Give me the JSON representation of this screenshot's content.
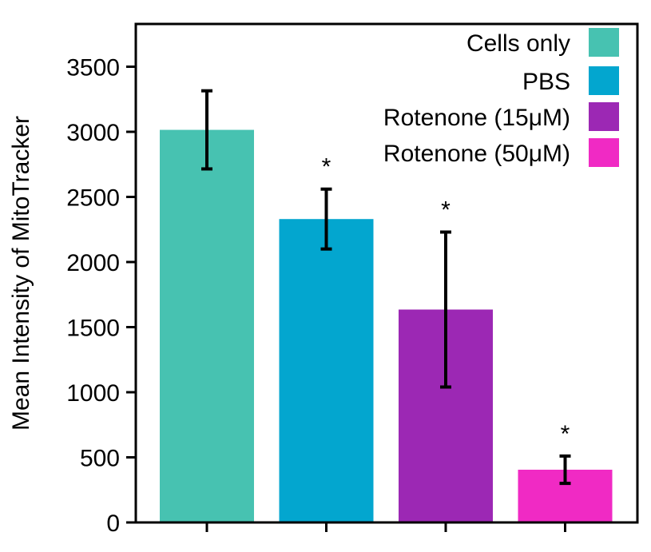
{
  "chart_data": {
    "type": "bar",
    "title": "",
    "xlabel": "",
    "ylabel": "Mean Intensity of MitoTracker",
    "ylim": [
      0,
      3800
    ],
    "yticks": [
      0,
      500,
      1000,
      1500,
      2000,
      2500,
      3000,
      3500
    ],
    "categories": [
      "Cells only",
      "PBS",
      "Rotenone (15μM)",
      "Rotenone (50μM)"
    ],
    "values": [
      3015,
      2330,
      1635,
      405
    ],
    "errors": [
      300,
      230,
      595,
      105
    ],
    "significance": [
      "",
      "*",
      "*",
      "*"
    ],
    "colors": [
      "#47c2b1",
      "#03a6cf",
      "#9c28b4",
      "#f02ac4"
    ],
    "legend": {
      "placement": "top-right",
      "entries": [
        "Cells only",
        "PBS",
        "Rotenone (15μM)",
        "Rotenone (50μM)"
      ]
    },
    "grid": false
  }
}
